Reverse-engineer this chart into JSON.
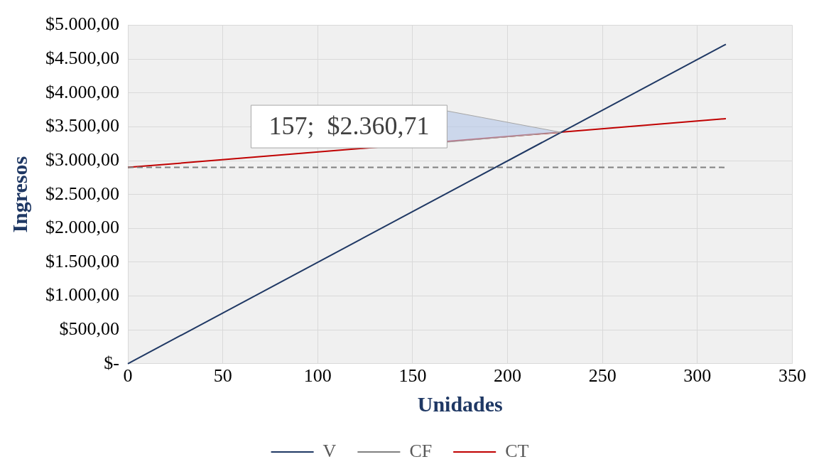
{
  "chart_data": {
    "type": "line",
    "xlabel": "Unidades",
    "ylabel": "Ingresos",
    "xlim": [
      0,
      350
    ],
    "xticks": [
      0,
      50,
      100,
      150,
      200,
      250,
      300,
      350
    ],
    "ylim": [
      0,
      5000
    ],
    "yticks": [
      {
        "value": 0,
        "label": "$-"
      },
      {
        "value": 500,
        "label": "$500,00"
      },
      {
        "value": 1000,
        "label": "$1.000,00"
      },
      {
        "value": 1500,
        "label": "$1.500,00"
      },
      {
        "value": 2000,
        "label": "$2.000,00"
      },
      {
        "value": 2500,
        "label": "$2.500,00"
      },
      {
        "value": 3000,
        "label": "$3.000,00"
      },
      {
        "value": 3500,
        "label": "$3.500,00"
      },
      {
        "value": 4000,
        "label": "$4.000,00"
      },
      {
        "value": 4500,
        "label": "$4.500,00"
      },
      {
        "value": 5000,
        "label": "$5.000,00"
      }
    ],
    "x": [
      0,
      315
    ],
    "series": [
      {
        "name": "V",
        "color": "#1f3864",
        "values": [
          0,
          4720
        ],
        "line_style": "solid"
      },
      {
        "name": "CF",
        "color": "#808080",
        "values": [
          2900,
          2900
        ],
        "line_style": "dashed"
      },
      {
        "name": "CT",
        "color": "#c00000",
        "values": [
          2900,
          3620
        ],
        "line_style": "solid"
      }
    ],
    "annotations": [
      {
        "text": "157;  $2.360,71",
        "x": 228,
        "y": 3420
      }
    ],
    "grid": true,
    "legend": "bottom",
    "marker": "none"
  }
}
